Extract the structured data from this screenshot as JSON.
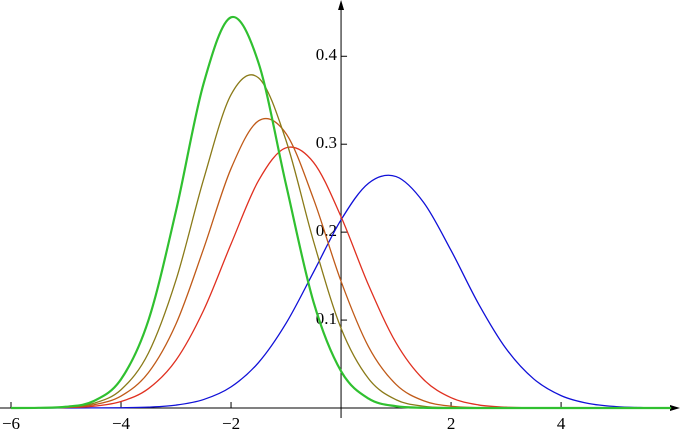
{
  "chart_data": {
    "type": "line",
    "x": [
      -6,
      -5.5,
      -5,
      -4.5,
      -4,
      -3.5,
      -3,
      -2.5,
      -2,
      -1.5,
      -1,
      -0.5,
      0,
      0.5,
      1,
      1.5,
      2,
      2.5,
      3,
      3.5,
      4,
      4.5,
      5,
      5.5,
      6
    ],
    "series": [
      {
        "color": "#1010d8",
        "values": [
          0,
          0,
          0,
          0.0001,
          0.0003,
          0.001,
          0.0033,
          0.0096,
          0.024,
          0.0517,
          0.0963,
          0.1546,
          0.214,
          0.2556,
          0.2632,
          0.2339,
          0.1792,
          0.1184,
          0.0675,
          0.0332,
          0.0141,
          0.0051,
          0.0016,
          0.0004,
          0.0001
        ]
      },
      {
        "color": "#e03020",
        "values": [
          0,
          0.0001,
          0.0005,
          0.002,
          0.0074,
          0.0221,
          0.0545,
          0.1109,
          0.1865,
          0.2586,
          0.2959,
          0.2793,
          0.2175,
          0.1397,
          0.0741,
          0.0324,
          0.0117,
          0.0035,
          0.0009,
          0.0002,
          0,
          0,
          0,
          0,
          0
        ]
      },
      {
        "color": "#c05a18",
        "values": [
          0,
          0.0001,
          0.0008,
          0.0036,
          0.0136,
          0.0404,
          0.0957,
          0.1809,
          0.2723,
          0.3266,
          0.3121,
          0.2376,
          0.1441,
          0.0696,
          0.0268,
          0.0082,
          0.002,
          0.0004,
          0.0001,
          0,
          0,
          0,
          0,
          0,
          0
        ]
      },
      {
        "color": "#8a7a18",
        "values": [
          0,
          0.0002,
          0.001,
          0.0053,
          0.0208,
          0.0627,
          0.1456,
          0.2598,
          0.3563,
          0.3755,
          0.3042,
          0.1895,
          0.0907,
          0.0334,
          0.0094,
          0.002,
          0.0003,
          0,
          0,
          0,
          0,
          0,
          0,
          0,
          0
        ]
      },
      {
        "color": "#30c030",
        "values": [
          0,
          0.0002,
          0.0014,
          0.0078,
          0.0327,
          0.1,
          0.2243,
          0.3687,
          0.4443,
          0.3924,
          0.254,
          0.1205,
          0.0419,
          0.0107,
          0.002,
          0.0003,
          0,
          0,
          0,
          0,
          0,
          0,
          0,
          0,
          0
        ]
      }
    ],
    "xlim": [
      -6.2,
      6.18
    ],
    "ylim": [
      0,
      0.464
    ],
    "xticks": [
      {
        "value": -6,
        "label": "−6"
      },
      {
        "value": -4,
        "label": "−4"
      },
      {
        "value": -2,
        "label": "−2"
      },
      2,
      4
    ],
    "yticks": [
      0.1,
      0.2,
      0.3,
      0.4
    ]
  }
}
